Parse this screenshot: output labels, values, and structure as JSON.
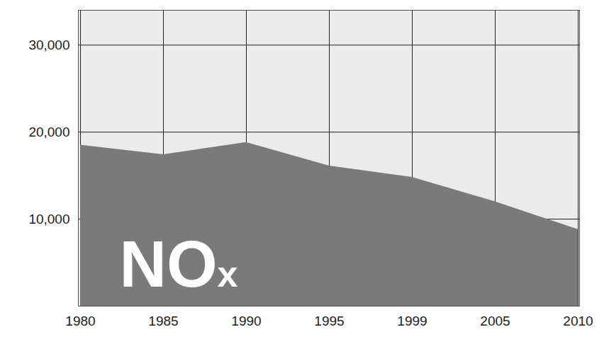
{
  "chart_data": {
    "type": "area",
    "annotation": "NOx",
    "categories": [
      "1980",
      "1985",
      "1990",
      "1995",
      "1999",
      "2005",
      "2010"
    ],
    "values": [
      18500,
      17400,
      18800,
      16100,
      14800,
      12000,
      8800
    ],
    "color": "#7a7a7a",
    "ylim": [
      0,
      34000
    ],
    "yticks": [
      10000,
      20000,
      30000
    ],
    "grid": true
  }
}
